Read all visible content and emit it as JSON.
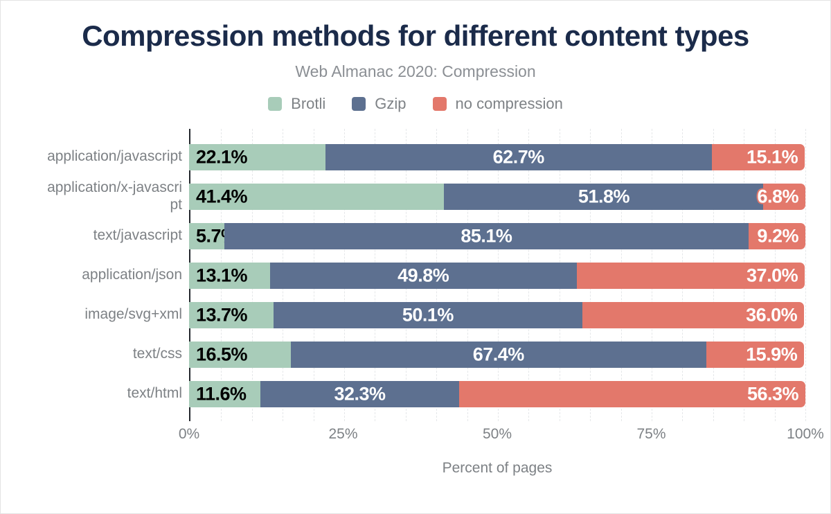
{
  "chart_data": {
    "type": "bar",
    "orientation": "horizontal",
    "stacked": true,
    "title": "Compression methods for different content types",
    "subtitle": "Web Almanac 2020: Compression",
    "xlabel": "Percent of pages",
    "xlim": [
      0,
      100
    ],
    "x_ticks": [
      {
        "value": 0,
        "label": "0%"
      },
      {
        "value": 25,
        "label": "25%"
      },
      {
        "value": 50,
        "label": "50%"
      },
      {
        "value": 75,
        "label": "75%"
      },
      {
        "value": 100,
        "label": "100%"
      }
    ],
    "grid": {
      "minor_step_percent": 5,
      "style": "dashed",
      "visible": true
    },
    "legend_position": "top",
    "categories": [
      "application/javascript",
      "application/x-javascript",
      "text/javascript",
      "application/json",
      "image/svg+xml",
      "text/css",
      "text/html"
    ],
    "category_label_lines": [
      [
        "application/javascript"
      ],
      [
        "application/x-javascri",
        "pt"
      ],
      [
        "text/javascript"
      ],
      [
        "application/json"
      ],
      [
        "image/svg+xml"
      ],
      [
        "text/css"
      ],
      [
        "text/html"
      ]
    ],
    "series": [
      {
        "name": "Brotli",
        "color": "#a8ccb9",
        "label_color": "#000000",
        "label_align": "left",
        "values": [
          22.1,
          41.4,
          5.7,
          13.1,
          13.7,
          16.5,
          11.6
        ]
      },
      {
        "name": "Gzip",
        "color": "#5d7090",
        "label_color": "#ffffff",
        "label_align": "center",
        "values": [
          62.7,
          51.8,
          85.1,
          49.8,
          50.1,
          67.4,
          32.3
        ]
      },
      {
        "name": "no compression",
        "color": "#e3786b",
        "label_color": "#ffffff",
        "label_align": "right",
        "values": [
          15.1,
          6.8,
          9.2,
          37.0,
          36.0,
          15.9,
          56.3
        ]
      }
    ],
    "value_label_format": "one_decimal_percent"
  },
  "colors": {
    "title": "#1b2b4a",
    "axis_text": "#7d8185",
    "axis_line": "#23272d",
    "gridline": "#e5e7e9",
    "background": "#ffffff"
  }
}
